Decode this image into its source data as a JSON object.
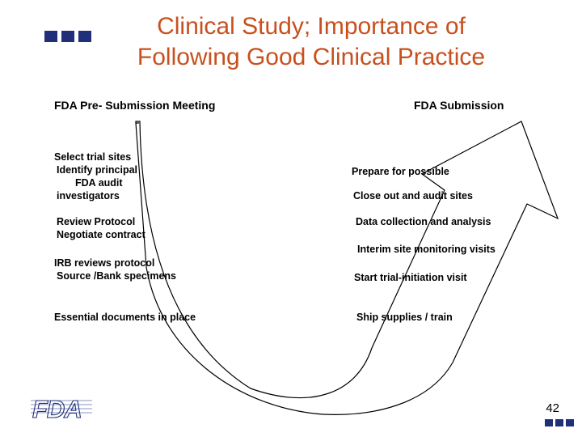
{
  "title": {
    "line1": "Clinical Study; Importance of",
    "line2": "Following Good Clinical Practice"
  },
  "headings": {
    "left": "FDA Pre- Submission Meeting",
    "right": "FDA Submission"
  },
  "left_steps": [
    {
      "lines": [
        "Select trial sites",
        " Identify principal",
        "     FDA audit",
        " investigators"
      ]
    },
    {
      "lines": [
        " Review Protocol",
        " Negotiate contract"
      ]
    },
    {
      "lines": [
        "IRB reviews protocol",
        " Source /Bank specimens"
      ]
    },
    {
      "lines": [
        "Essential documents in place"
      ]
    }
  ],
  "right_steps": [
    {
      "text": "Prepare for possible"
    },
    {
      "text": "Close out and audit sites"
    },
    {
      "text": "Data collection and analysis"
    },
    {
      "text": "Interim site monitoring visits"
    },
    {
      "text": "Start trial-initiation visit"
    },
    {
      "text": "Ship supplies / train"
    }
  ],
  "logo": {
    "text": "FDA"
  },
  "page_number": "42",
  "colors": {
    "title": "#c8501e",
    "bullets": "#1f2f7a",
    "logo": "#1f2f7a",
    "text": "#000000"
  }
}
